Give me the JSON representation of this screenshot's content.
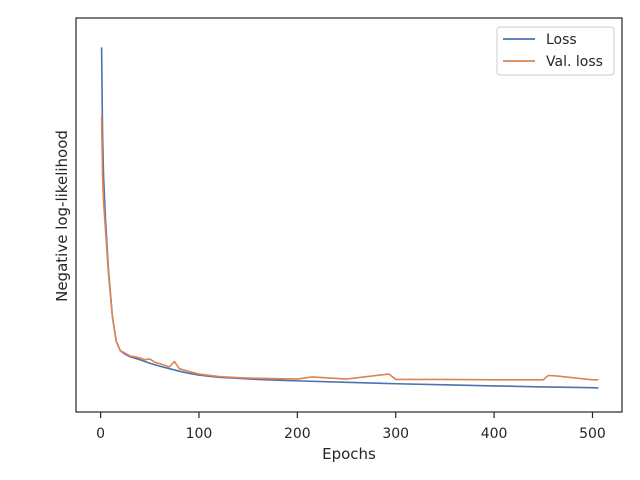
{
  "chart_data": {
    "type": "line",
    "title": "",
    "xlabel": "Epochs",
    "ylabel": "Negative log-likelihood",
    "xlim": [
      -25,
      530
    ],
    "ylim": [
      0,
      1
    ],
    "xticks": [
      0,
      100,
      200,
      300,
      400,
      500
    ],
    "yticks_shown": false,
    "grid": false,
    "legend": {
      "placement": "top-right",
      "entries": [
        "Loss",
        "Val. loss"
      ]
    },
    "colors": {
      "Loss": "#4c72b0",
      "Val. loss": "#dd8452"
    },
    "series": [
      {
        "name": "Loss",
        "x": [
          1,
          2,
          3,
          5,
          8,
          12,
          16,
          20,
          25,
          30,
          40,
          50,
          60,
          70,
          80,
          90,
          100,
          120,
          140,
          160,
          180,
          200,
          250,
          300,
          350,
          400,
          450,
          500,
          506
        ],
        "y": [
          0.96,
          0.72,
          0.6,
          0.48,
          0.34,
          0.21,
          0.14,
          0.115,
          0.105,
          0.098,
          0.09,
          0.08,
          0.072,
          0.065,
          0.058,
          0.052,
          0.047,
          0.041,
          0.038,
          0.035,
          0.033,
          0.031,
          0.027,
          0.023,
          0.02,
          0.017,
          0.014,
          0.012,
          0.011
        ]
      },
      {
        "name": "Val. loss",
        "x": [
          1,
          2,
          3,
          5,
          8,
          12,
          16,
          20,
          25,
          30,
          35,
          40,
          45,
          50,
          55,
          60,
          70,
          75,
          80,
          90,
          100,
          120,
          140,
          160,
          180,
          200,
          215,
          250,
          293,
          300,
          350,
          400,
          450,
          455,
          462,
          500,
          506
        ],
        "y": [
          0.77,
          0.6,
          0.53,
          0.45,
          0.33,
          0.21,
          0.14,
          0.115,
          0.108,
          0.1,
          0.098,
          0.095,
          0.09,
          0.092,
          0.083,
          0.079,
          0.07,
          0.085,
          0.065,
          0.057,
          0.05,
          0.043,
          0.04,
          0.038,
          0.037,
          0.036,
          0.042,
          0.036,
          0.05,
          0.035,
          0.035,
          0.034,
          0.034,
          0.046,
          0.045,
          0.034,
          0.034
        ]
      }
    ]
  }
}
